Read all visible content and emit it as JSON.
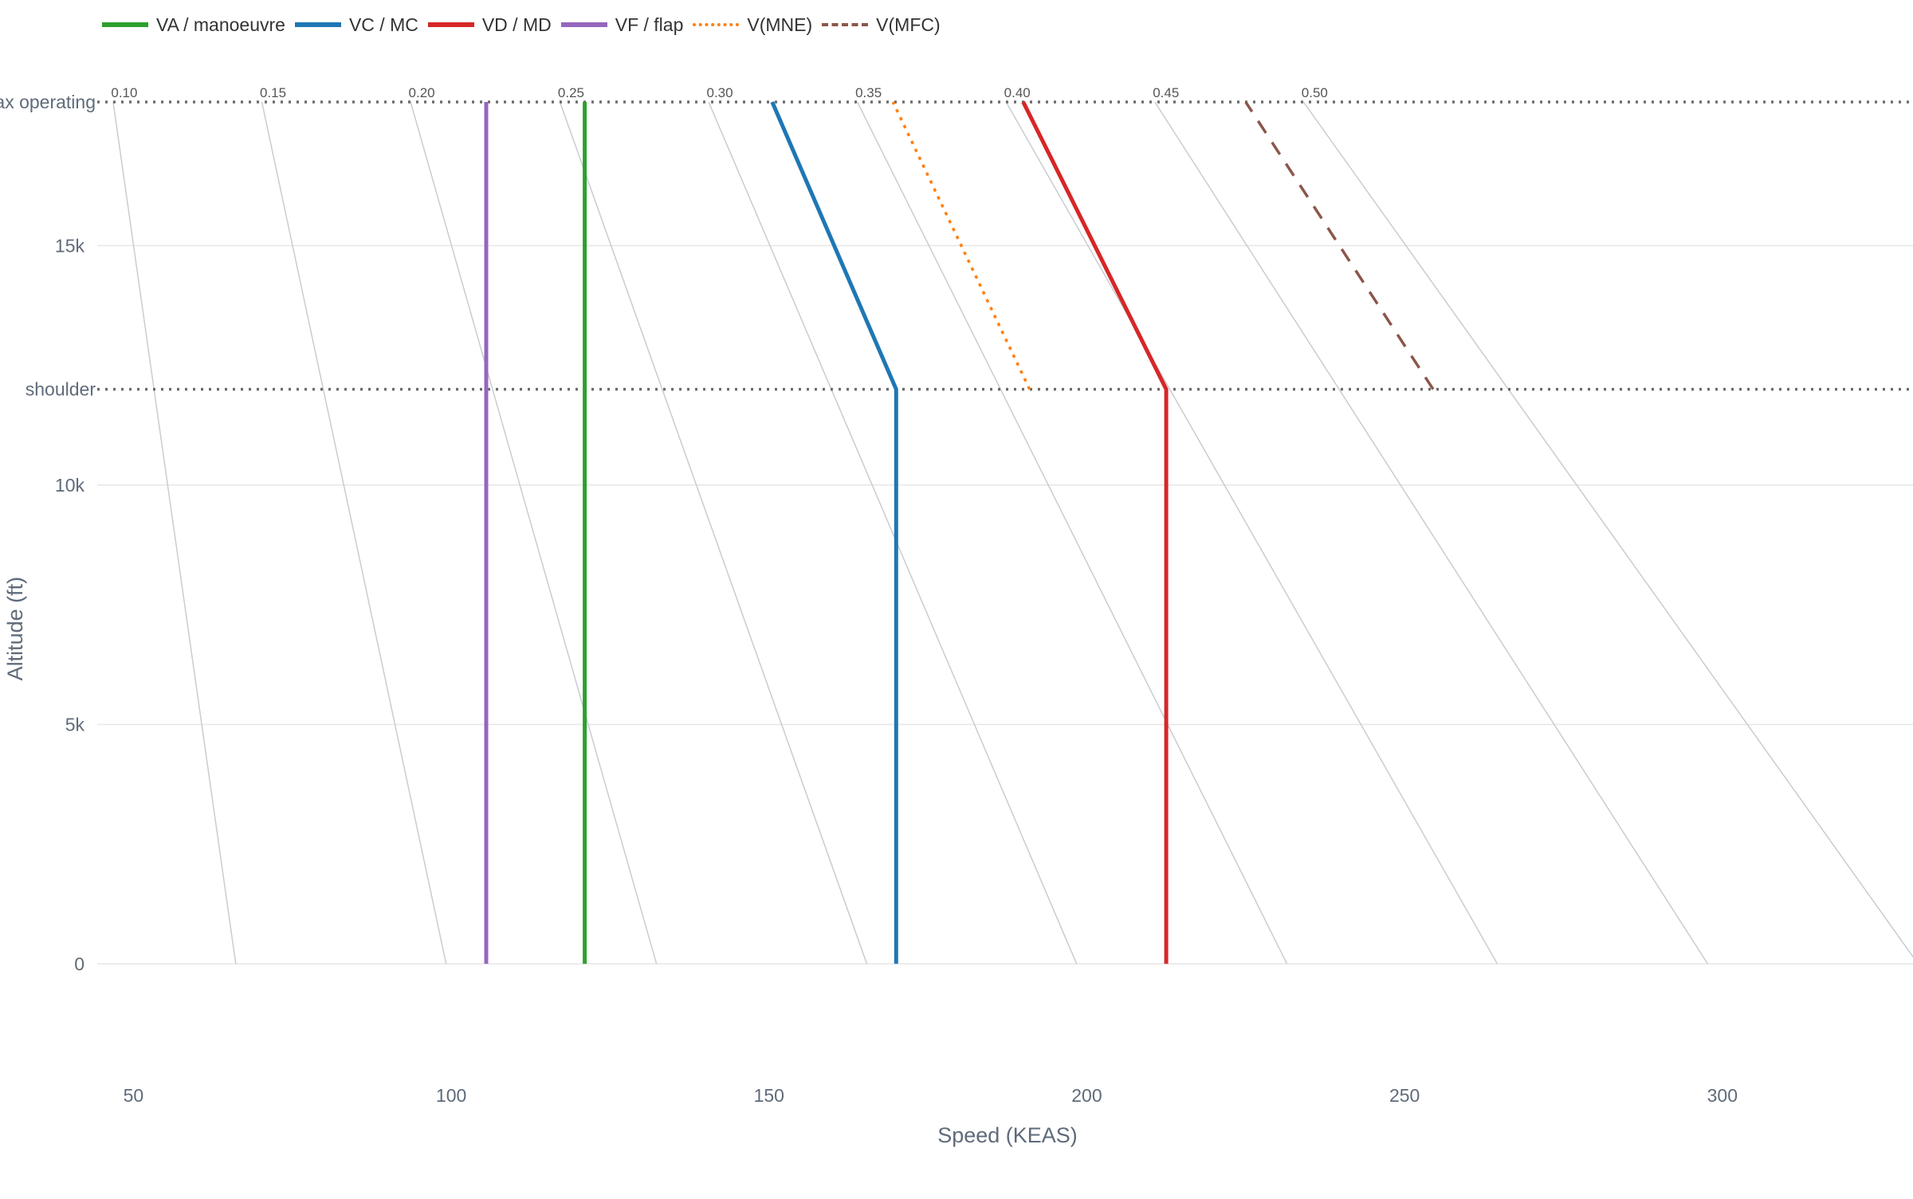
{
  "chart_data": {
    "type": "line",
    "title": "",
    "xlabel": "Speed (KEAS)",
    "ylabel": "Altitude (ft)",
    "xlim": [
      44.3,
      330
    ],
    "ylim": [
      -1500,
      18300
    ],
    "grid": true,
    "legend_position": "top-left",
    "x_ticks": [
      {
        "value": 50,
        "label": "50"
      },
      {
        "value": 100,
        "label": "100"
      },
      {
        "value": 150,
        "label": "150"
      },
      {
        "value": 200,
        "label": "200"
      },
      {
        "value": 250,
        "label": "250"
      },
      {
        "value": 300,
        "label": "300"
      }
    ],
    "y_ticks": [
      {
        "value": 0,
        "label": "0"
      },
      {
        "value": 5000,
        "label": "5k"
      },
      {
        "value": 10000,
        "label": "10k"
      },
      {
        "value": 15000,
        "label": "15k"
      }
    ],
    "reference_lines": [
      {
        "label": "shoulder",
        "y": 12000
      },
      {
        "label": "Max operating",
        "y": 18000
      }
    ],
    "mach_lines": [
      {
        "label": "0.10",
        "x": [
          66.1,
          46.8
        ],
        "y": [
          0,
          18000
        ]
      },
      {
        "label": "0.15",
        "x": [
          99.2,
          70.2
        ],
        "y": [
          0,
          18000
        ]
      },
      {
        "label": "0.20",
        "x": [
          132.3,
          93.6
        ],
        "y": [
          0,
          18000
        ]
      },
      {
        "label": "0.25",
        "x": [
          165.4,
          117.1
        ],
        "y": [
          0,
          18000
        ]
      },
      {
        "label": "0.30",
        "x": [
          198.4,
          140.5
        ],
        "y": [
          0,
          18000
        ]
      },
      {
        "label": "0.35",
        "x": [
          231.5,
          163.9
        ],
        "y": [
          0,
          18000
        ]
      },
      {
        "label": "0.40",
        "x": [
          264.6,
          187.3
        ],
        "y": [
          0,
          18000
        ]
      },
      {
        "label": "0.45",
        "x": [
          297.7,
          210.7
        ],
        "y": [
          0,
          18000
        ]
      },
      {
        "label": "0.50",
        "x": [
          330.8,
          234.1
        ],
        "y": [
          0,
          18000
        ]
      }
    ],
    "series": [
      {
        "name": "VA / manoeuvre",
        "color": "#2ca02c",
        "dash": "solid",
        "x": [
          121,
          121
        ],
        "y": [
          0,
          18000
        ]
      },
      {
        "name": "VC / MC",
        "color": "#1f77b4",
        "dash": "solid",
        "x": [
          170,
          170,
          150.5
        ],
        "y": [
          0,
          12000,
          18000
        ]
      },
      {
        "name": "VD / MD",
        "color": "#d62728",
        "dash": "solid",
        "x": [
          212.5,
          212.5,
          190
        ],
        "y": [
          0,
          12000,
          18000
        ]
      },
      {
        "name": "VF / flap",
        "color": "#9467bd",
        "dash": "solid",
        "x": [
          105.5,
          105.5
        ],
        "y": [
          0,
          18000
        ]
      },
      {
        "name": "V(MNE)",
        "color": "#ff7f0e",
        "dash": "dot",
        "x": [
          191,
          169.5
        ],
        "y": [
          12000,
          18000
        ]
      },
      {
        "name": "V(MFC)",
        "color": "#8c564b",
        "dash": "dash",
        "x": [
          254.5,
          225
        ],
        "y": [
          12000,
          18000
        ]
      }
    ]
  }
}
